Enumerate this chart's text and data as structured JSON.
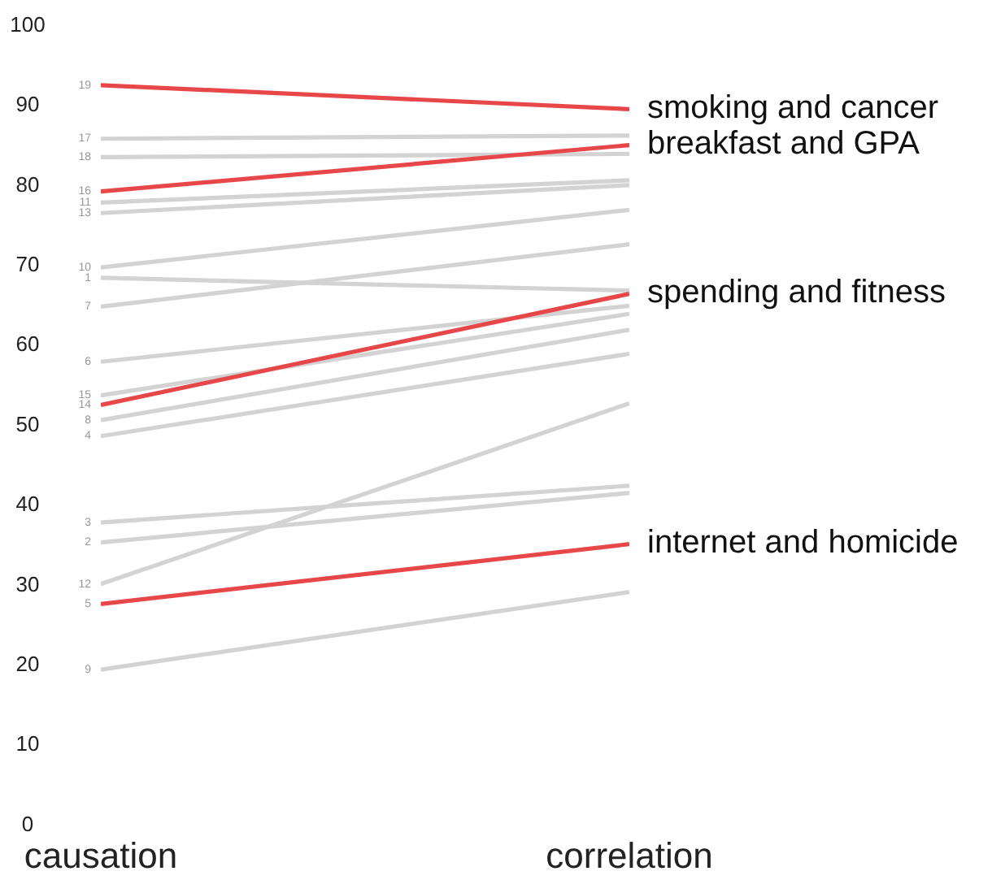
{
  "chart_data": {
    "type": "line",
    "categories": [
      "causation",
      "correlation"
    ],
    "ylim": [
      0,
      100
    ],
    "yticks": [
      0,
      10,
      20,
      30,
      40,
      50,
      60,
      70,
      80,
      90,
      100
    ],
    "grid": false,
    "legend": false,
    "marker": "none",
    "line_style": "solid",
    "series": [
      {
        "name": "17",
        "color": "#d3d3d3",
        "values": [
          85.9,
          86.3
        ]
      },
      {
        "name": "18",
        "color": "#d3d3d3",
        "values": [
          83.6,
          84.0
        ]
      },
      {
        "name": "11",
        "color": "#d3d3d3",
        "values": [
          77.9,
          80.7
        ]
      },
      {
        "name": "13",
        "color": "#d3d3d3",
        "values": [
          76.6,
          80.1
        ]
      },
      {
        "name": "10",
        "color": "#d3d3d3",
        "values": [
          69.8,
          77.0
        ]
      },
      {
        "name": "1",
        "color": "#d3d3d3",
        "values": [
          68.5,
          66.9
        ]
      },
      {
        "name": "7",
        "color": "#d3d3d3",
        "values": [
          64.9,
          72.7
        ]
      },
      {
        "name": "6",
        "color": "#d3d3d3",
        "values": [
          58.0,
          65.0
        ]
      },
      {
        "name": "15",
        "color": "#d3d3d3",
        "values": [
          53.8,
          64.0
        ]
      },
      {
        "name": "8",
        "color": "#d3d3d3",
        "values": [
          50.7,
          62.0
        ]
      },
      {
        "name": "4",
        "color": "#d3d3d3",
        "values": [
          48.7,
          59.0
        ]
      },
      {
        "name": "3",
        "color": "#d3d3d3",
        "values": [
          37.9,
          42.5
        ]
      },
      {
        "name": "2",
        "color": "#d3d3d3",
        "values": [
          35.4,
          41.6
        ]
      },
      {
        "name": "12",
        "color": "#d3d3d3",
        "values": [
          30.2,
          52.8
        ]
      },
      {
        "name": "9",
        "color": "#d3d3d3",
        "values": [
          19.5,
          29.2
        ]
      },
      {
        "name": "19",
        "color": "#e8474a",
        "values": [
          92.6,
          89.6
        ]
      },
      {
        "name": "16",
        "color": "#e8474a",
        "values": [
          79.3,
          85.1
        ]
      },
      {
        "name": "5",
        "color": "#e8474a",
        "values": [
          27.7,
          35.2
        ]
      },
      {
        "name": "14",
        "color": "#e8474a",
        "values": [
          52.6,
          66.5
        ]
      }
    ],
    "annotations": [
      {
        "text": "smoking and cancer",
        "x": "correlation",
        "y": 89.6
      },
      {
        "text": "breakfast and GPA",
        "x": "correlation",
        "y": 85.1
      },
      {
        "text": "spending and fitness",
        "x": "correlation",
        "y": 66.5
      },
      {
        "text": "internet and homicide",
        "x": "correlation",
        "y": 35.2
      }
    ]
  }
}
